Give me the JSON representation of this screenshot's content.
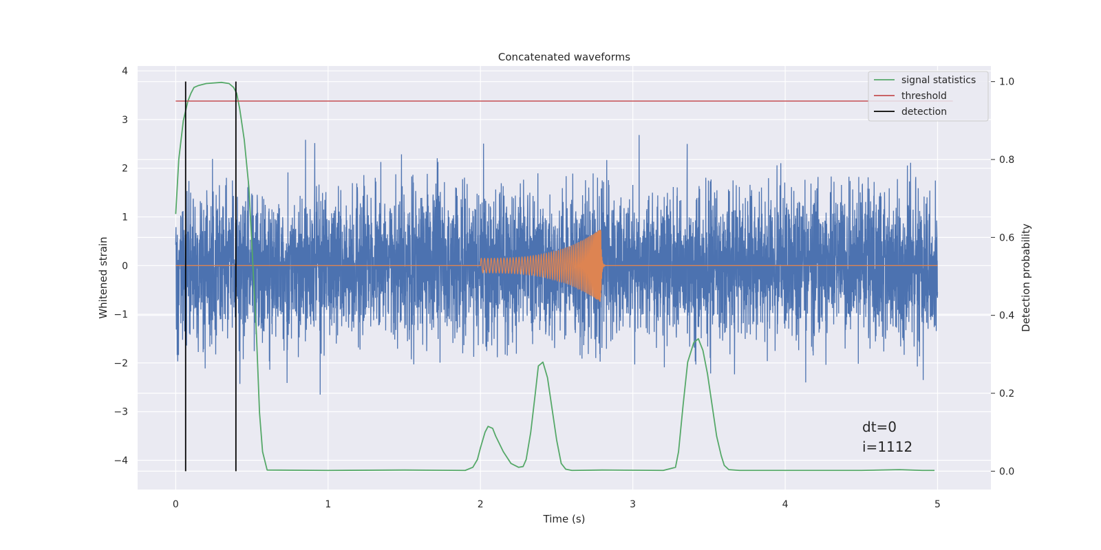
{
  "chart_data": {
    "type": "line",
    "title": "Concatenated waveforms",
    "xlabel": "Time (s)",
    "ylabel": "Whitened strain",
    "y2label": "Detection probability",
    "xlim": [
      -0.25,
      5.35
    ],
    "ylim": [
      -4.6,
      4.1
    ],
    "y2lim": [
      -0.047,
      1.04
    ],
    "xticks": [
      0,
      1,
      2,
      3,
      4,
      5
    ],
    "yticks": [
      4,
      3,
      2,
      1,
      0,
      -1,
      -2,
      -3,
      -4
    ],
    "y2ticks": [
      0.0,
      0.2,
      0.4,
      0.6,
      0.8,
      1.0
    ],
    "xtick_labels": [
      "0",
      "1",
      "2",
      "3",
      "4",
      "5"
    ],
    "ytick_labels": [
      "4",
      "3",
      "2",
      "1",
      "0",
      "−1",
      "−2",
      "−3",
      "−4"
    ],
    "y2tick_labels": [
      "0.0",
      "0.2",
      "0.4",
      "0.6",
      "0.8",
      "1.0"
    ],
    "grid": true,
    "legend_position": "top-right",
    "legend": [
      "signal statistics",
      "threshold",
      "detection"
    ],
    "colors": {
      "whitened": "#4c72b0",
      "template": "#dd8452",
      "signal_statistics": "#55a868",
      "threshold": "#c44e52",
      "detection": "#000000",
      "axes_bg": "#eaeaf2",
      "grid": "#ffffff"
    },
    "series": [
      {
        "name": "whitened strain",
        "axis": "left",
        "x_range": [
          0,
          5
        ],
        "noise_std": 0.75,
        "visible_min": -4.2,
        "visible_max": 3.4
      },
      {
        "name": "injected waveform",
        "axis": "left",
        "x_range": [
          2.0,
          2.8
        ],
        "amplitude_start": 0.15,
        "amplitude_peak": 0.75,
        "peak_time": 2.79
      },
      {
        "name": "signal statistics",
        "axis": "right",
        "x": [
          0.0,
          0.02,
          0.05,
          0.08,
          0.1,
          0.12,
          0.15,
          0.2,
          0.3,
          0.35,
          0.38,
          0.4,
          0.42,
          0.45,
          0.48,
          0.5,
          0.53,
          0.55,
          0.57,
          0.6,
          1.0,
          1.5,
          1.9,
          1.95,
          1.98,
          2.0,
          2.03,
          2.05,
          2.08,
          2.1,
          2.15,
          2.2,
          2.25,
          2.28,
          2.3,
          2.33,
          2.36,
          2.38,
          2.41,
          2.44,
          2.47,
          2.5,
          2.53,
          2.56,
          2.6,
          2.8,
          3.2,
          3.28,
          3.3,
          3.33,
          3.36,
          3.4,
          3.43,
          3.46,
          3.49,
          3.52,
          3.55,
          3.58,
          3.6,
          3.63,
          3.7,
          4.0,
          4.5,
          4.75,
          4.9,
          4.98
        ],
        "y": [
          0.66,
          0.8,
          0.9,
          0.95,
          0.97,
          0.985,
          0.99,
          0.995,
          0.998,
          0.995,
          0.985,
          0.97,
          0.93,
          0.85,
          0.73,
          0.58,
          0.35,
          0.15,
          0.05,
          0.003,
          0.002,
          0.003,
          0.002,
          0.01,
          0.03,
          0.06,
          0.1,
          0.115,
          0.11,
          0.09,
          0.05,
          0.02,
          0.01,
          0.012,
          0.03,
          0.1,
          0.2,
          0.27,
          0.28,
          0.24,
          0.16,
          0.08,
          0.02,
          0.005,
          0.002,
          0.003,
          0.002,
          0.01,
          0.05,
          0.17,
          0.28,
          0.33,
          0.34,
          0.31,
          0.25,
          0.17,
          0.09,
          0.04,
          0.015,
          0.004,
          0.002,
          0.002,
          0.002,
          0.004,
          0.002,
          0.002
        ]
      },
      {
        "name": "threshold",
        "axis": "right",
        "x": [
          0,
          5.1
        ],
        "y": [
          0.95,
          0.95
        ]
      },
      {
        "name": "detection",
        "axis": "right",
        "type": "vlines",
        "x": [
          0.065,
          0.395
        ],
        "ymin": 0.0,
        "ymax": 1.0
      }
    ],
    "annotations": [
      {
        "text": "dt=0",
        "x": 4.5,
        "y": -3.3
      },
      {
        "text": "i=1112",
        "x": 4.5,
        "y": -3.7
      }
    ]
  }
}
